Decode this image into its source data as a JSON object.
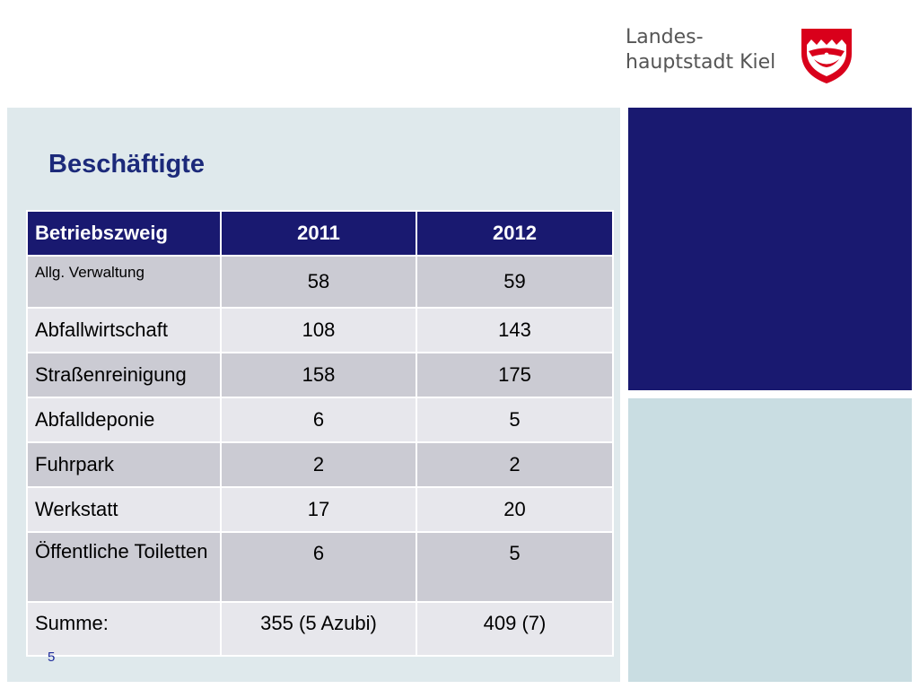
{
  "logo": {
    "line1": "Landes-",
    "line2": "hauptstadt Kiel",
    "emblem": "kiel-coat-of-arms-icon",
    "colors": {
      "red": "#d9001b",
      "white": "#ffffff",
      "gray": "#555555"
    }
  },
  "slide": {
    "title": "Beschäftigte",
    "page_number": "5"
  },
  "table": {
    "headers": [
      "Betriebszweig",
      "2011",
      "2012"
    ],
    "rows": [
      {
        "name": "Allg. Verwaltung",
        "y2011": "58",
        "y2012": "59"
      },
      {
        "name": "Abfallwirtschaft",
        "y2011": "108",
        "y2012": "143"
      },
      {
        "name": "Straßenreinigung",
        "y2011": "158",
        "y2012": "175"
      },
      {
        "name": "Abfalldeponie",
        "y2011": "6",
        "y2012": "5"
      },
      {
        "name": "Fuhrpark",
        "y2011": "2",
        "y2012": "2"
      },
      {
        "name": "Werkstatt",
        "y2011": "17",
        "y2012": "20"
      },
      {
        "name": "Öffentliche Toiletten",
        "y2011": "6",
        "y2012": "5"
      },
      {
        "name": "Summe:",
        "y2011": "355 (5 Azubi)",
        "y2012": "409 (7)"
      }
    ]
  },
  "colors": {
    "accent_navy": "#191970",
    "panel_light": "#dfe9ec",
    "panel_blue": "#c9dde2",
    "title_blue": "#1c2a7a"
  }
}
